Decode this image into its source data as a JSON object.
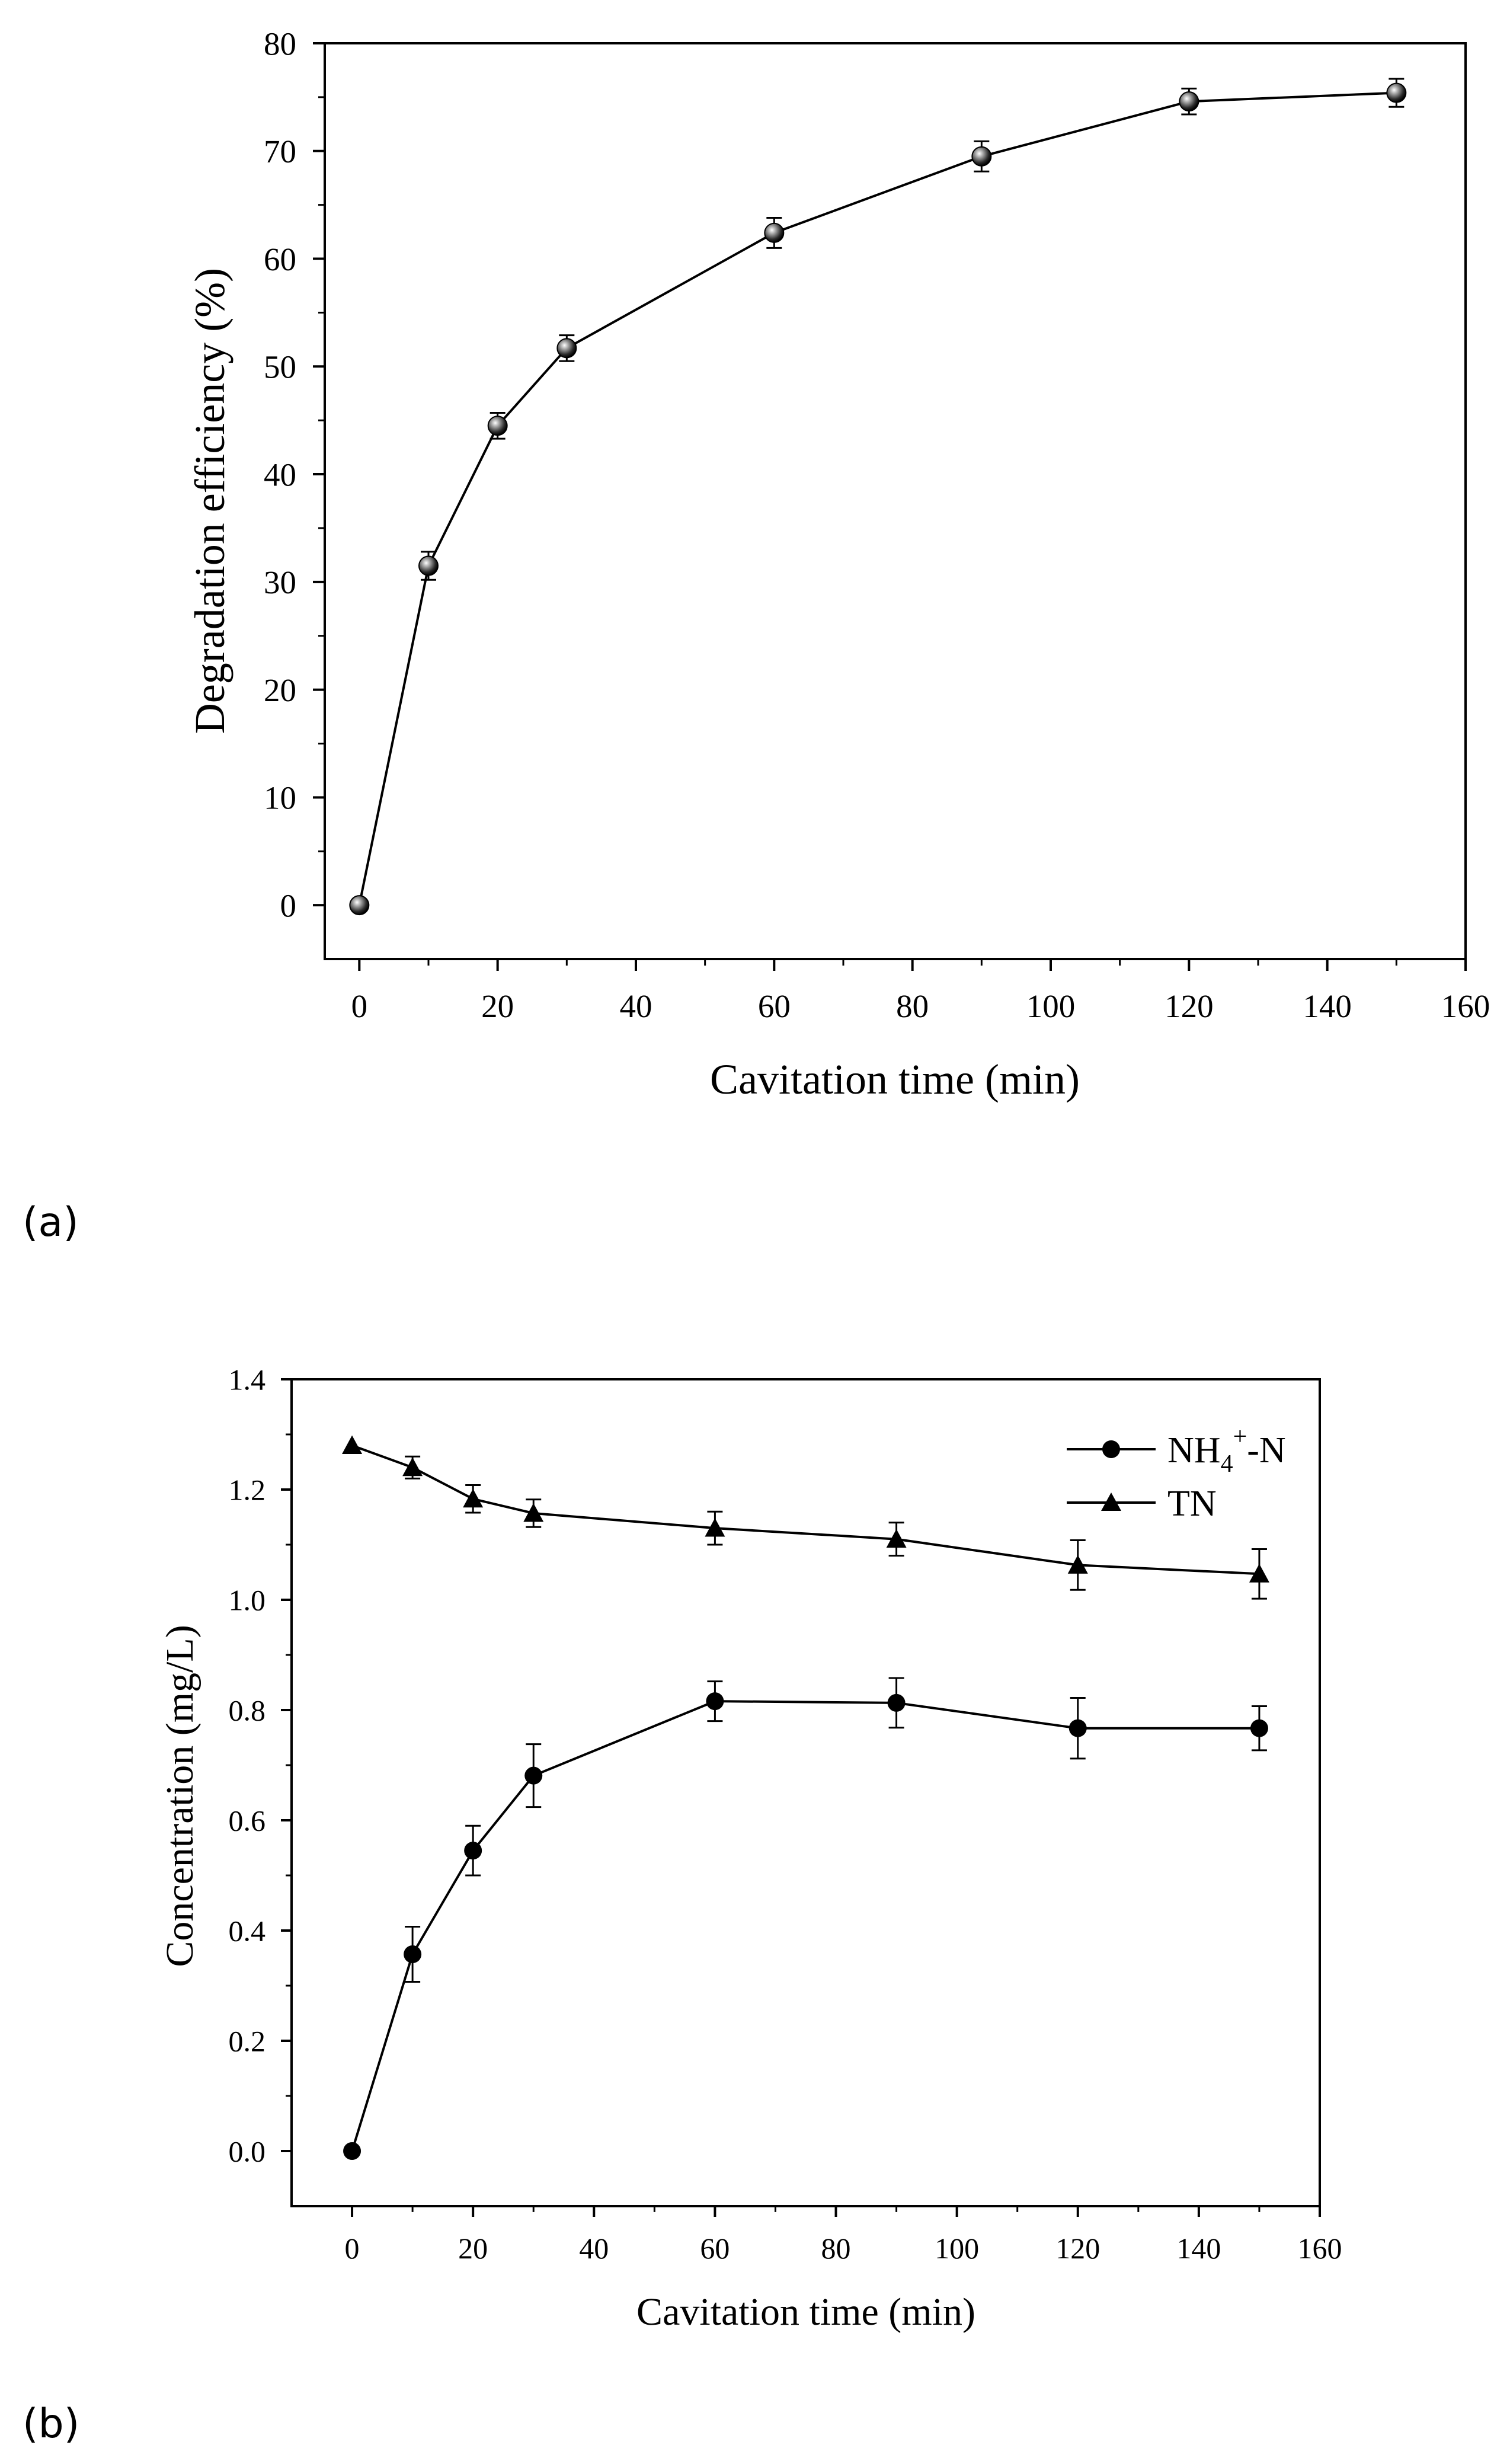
{
  "chart_data": [
    {
      "type": "line",
      "panel_label": "(a)",
      "xlabel": "Cavitation time (min)",
      "ylabel": "Degradation efficiency (%)",
      "xlim": [
        -5,
        160
      ],
      "ylim": [
        -5,
        80
      ],
      "x_ticks": [
        0,
        20,
        40,
        60,
        80,
        100,
        120,
        140,
        160
      ],
      "y_ticks": [
        0,
        10,
        20,
        30,
        40,
        50,
        60,
        70,
        80
      ],
      "grid": false,
      "series": [
        {
          "marker": "shaded-sphere",
          "x": [
            0,
            10,
            20,
            30,
            60,
            90,
            120,
            150
          ],
          "y": [
            0,
            31.5,
            44.5,
            51.7,
            62.4,
            69.5,
            74.6,
            75.4
          ],
          "error": [
            0,
            1.3,
            1.2,
            1.2,
            1.4,
            1.4,
            1.2,
            1.3
          ]
        }
      ]
    },
    {
      "type": "line",
      "panel_label": "(b)",
      "xlabel": "Cavitation time (min)",
      "ylabel": "Concentration (mg/L)",
      "xlim": [
        -10,
        160
      ],
      "ylim": [
        -0.1,
        1.4
      ],
      "x_ticks": [
        0,
        20,
        40,
        60,
        80,
        100,
        120,
        140,
        160
      ],
      "y_ticks": [
        "0.0",
        "0.2",
        "0.4",
        "0.6",
        "0.8",
        "1.0",
        "1.2",
        "1.4"
      ],
      "grid": false,
      "legend_position": "top-right",
      "series": [
        {
          "name_main": "NH",
          "name_sub": "4",
          "name_sup": "+",
          "name_tail": "-N",
          "marker": "circle",
          "x": [
            0,
            10,
            20,
            30,
            60,
            90,
            120,
            150
          ],
          "y": [
            0,
            0.357,
            0.545,
            0.681,
            0.816,
            0.813,
            0.767,
            0.767
          ],
          "error": [
            0,
            0.05,
            0.045,
            0.057,
            0.036,
            0.045,
            0.055,
            0.04
          ]
        },
        {
          "name": "TN",
          "marker": "triangle",
          "x": [
            0,
            10,
            20,
            30,
            60,
            90,
            120,
            150
          ],
          "y": [
            1.28,
            1.24,
            1.183,
            1.157,
            1.13,
            1.11,
            1.063,
            1.047
          ],
          "error": [
            0,
            0.02,
            0.025,
            0.025,
            0.03,
            0.03,
            0.045,
            0.045
          ]
        }
      ]
    }
  ]
}
